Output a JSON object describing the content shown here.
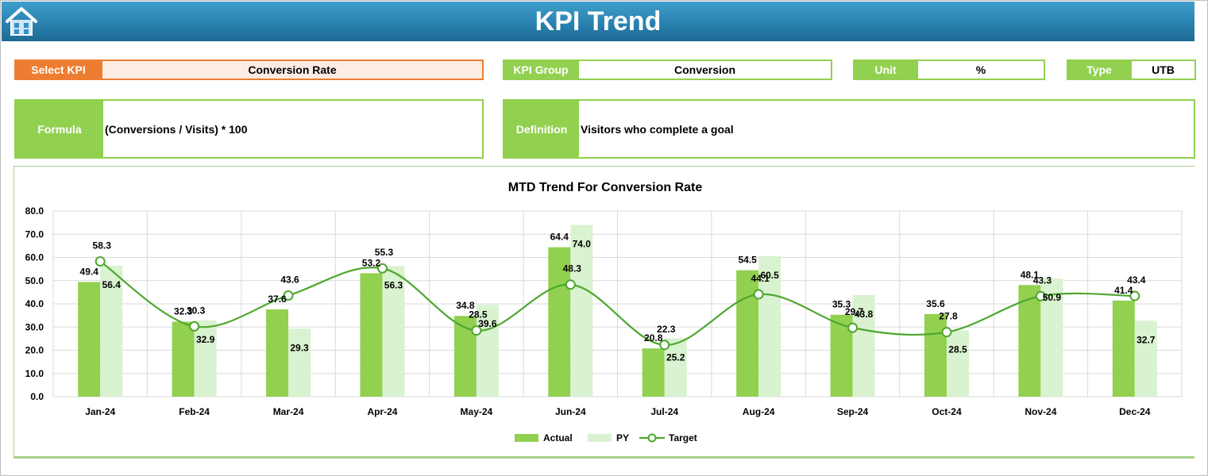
{
  "header": {
    "title": "KPI Trend",
    "home_icon": "home-icon"
  },
  "selectors": {
    "select_kpi_label": "Select KPI",
    "select_kpi_value": "Conversion Rate",
    "kpi_group_label": "KPI Group",
    "kpi_group_value": "Conversion",
    "unit_label": "Unit",
    "unit_value": "%",
    "type_label": "Type",
    "type_value": "UTB"
  },
  "info": {
    "formula_label": "Formula",
    "formula_value": "(Conversions / Visits) * 100",
    "definition_label": "Definition",
    "definition_value": "Visitors who complete a goal"
  },
  "colors": {
    "accent_orange": "#ed7d31",
    "accent_green": "#92d050",
    "actual": "#92d050",
    "py": "#d9f2d0",
    "target": "#4ea72e",
    "header_blue": "#2a82b0"
  },
  "chart_data": {
    "type": "bar",
    "title": "MTD Trend For Conversion Rate",
    "categories": [
      "Jan-24",
      "Feb-24",
      "Mar-24",
      "Apr-24",
      "May-24",
      "Jun-24",
      "Jul-24",
      "Aug-24",
      "Sep-24",
      "Oct-24",
      "Nov-24",
      "Dec-24"
    ],
    "ylim": [
      0,
      80
    ],
    "yticks": [
      "0.0",
      "10.0",
      "20.0",
      "30.0",
      "40.0",
      "50.0",
      "60.0",
      "70.0",
      "80.0"
    ],
    "grid": true,
    "legend_position": "bottom",
    "series": [
      {
        "name": "Actual",
        "kind": "bar",
        "values": [
          49.4,
          32.3,
          37.6,
          53.2,
          34.8,
          64.4,
          20.8,
          54.5,
          35.3,
          35.6,
          48.1,
          41.4
        ]
      },
      {
        "name": "PY",
        "kind": "bar",
        "values": [
          56.4,
          32.9,
          29.3,
          56.3,
          39.6,
          74.0,
          25.2,
          60.5,
          43.8,
          28.5,
          50.9,
          32.7
        ]
      },
      {
        "name": "Target",
        "kind": "line",
        "values": [
          58.3,
          30.3,
          43.6,
          55.3,
          28.5,
          48.3,
          22.3,
          44.1,
          29.7,
          27.8,
          43.3,
          43.4
        ]
      }
    ]
  }
}
